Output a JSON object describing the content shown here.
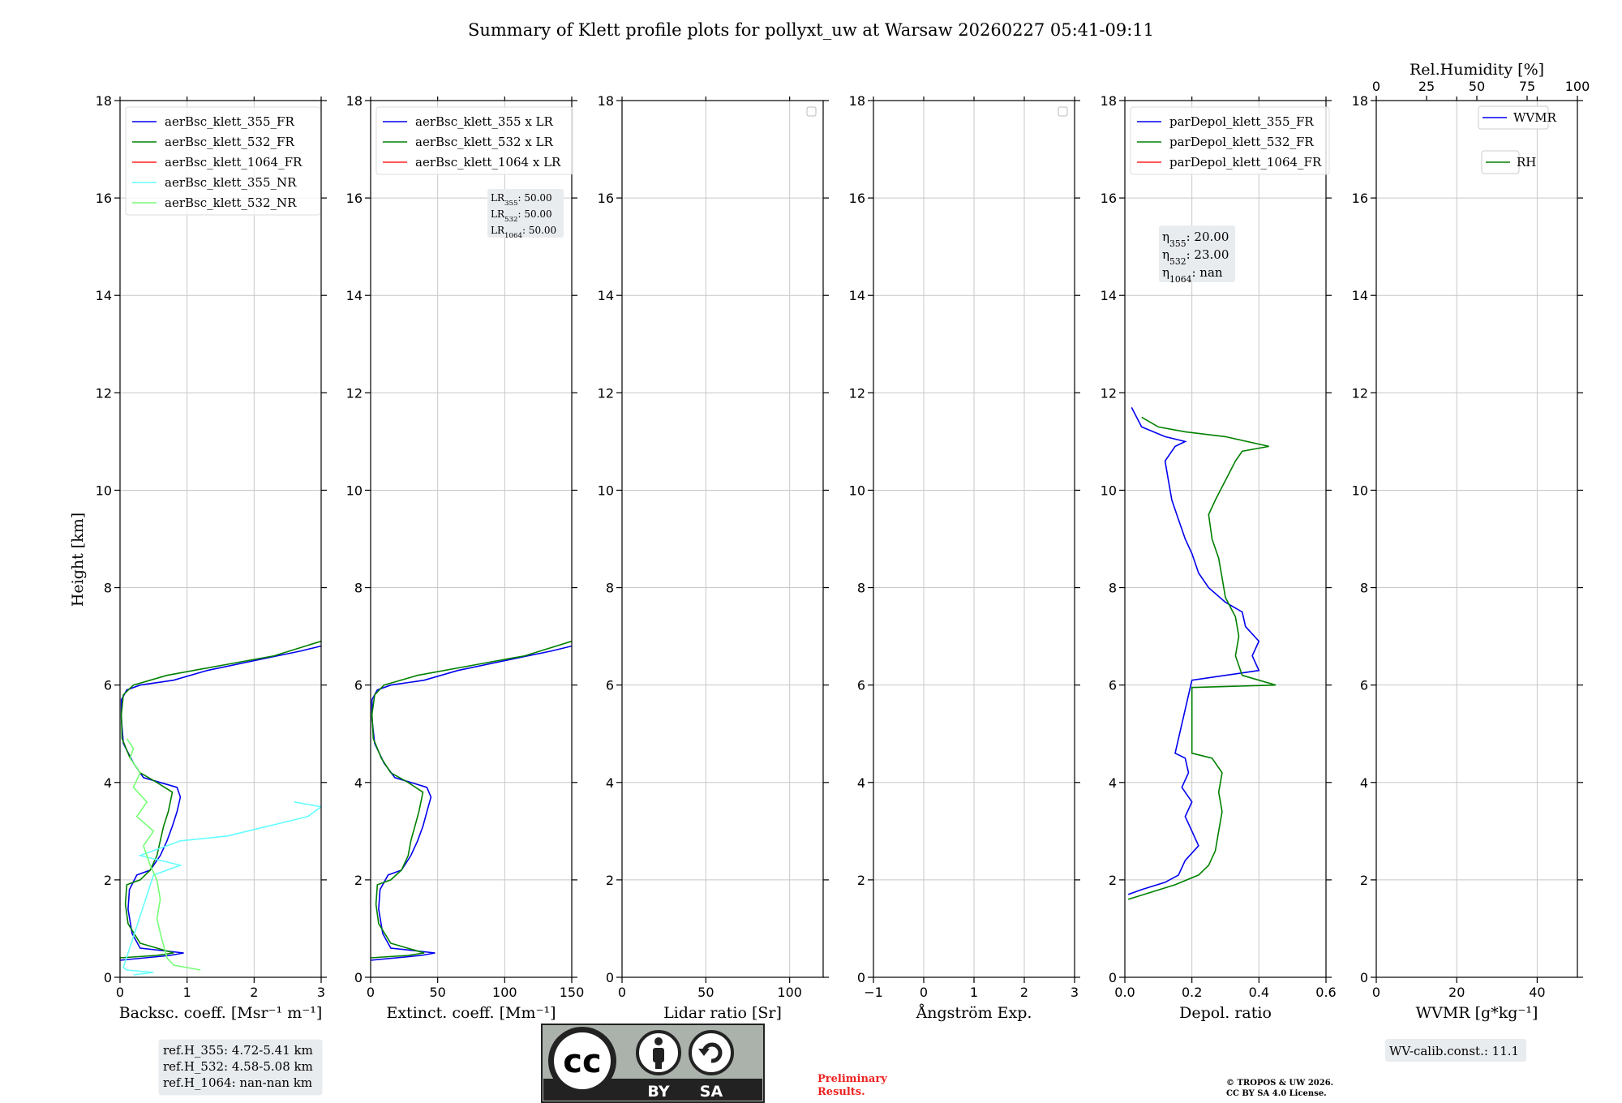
{
  "title": "Summary of Klett profile plots for pollyxt_uw at Warsaw 20260227 05:41-09:11",
  "y_axis": {
    "label": "Height [km]",
    "ylim": [
      0,
      18
    ],
    "ticks": [
      0,
      2,
      4,
      6,
      8,
      10,
      12,
      14,
      16,
      18
    ]
  },
  "colors": {
    "c355": "#0000ee",
    "c532": "#008000",
    "c1064": "#ff2020",
    "c355nr": "#66ffff",
    "c532nr": "#77ff77",
    "grid": "#c8c8c8",
    "box": "#e9ecef",
    "red_note": "#ee2222"
  },
  "chart_data": [
    {
      "type": "line",
      "id": "bsc",
      "xlabel": "Backsc. coeff. [Msr⁻¹ m⁻¹]",
      "xlim": [
        0,
        3
      ],
      "xticks": [
        0,
        1,
        2,
        3
      ],
      "ylim": [
        0,
        18
      ],
      "legend": [
        "aerBsc_klett_355_FR",
        "aerBsc_klett_532_FR",
        "aerBsc_klett_1064_FR",
        "aerBsc_klett_355_NR",
        "aerBsc_klett_532_NR"
      ],
      "series": [
        {
          "name": "aerBsc_klett_355_FR",
          "color": "c355",
          "points": [
            [
              0,
              0.35
            ],
            [
              0.75,
              0.45
            ],
            [
              0.95,
              0.5
            ],
            [
              0.3,
              0.6
            ],
            [
              0.18,
              0.9
            ],
            [
              0.12,
              1.4
            ],
            [
              0.14,
              1.8
            ],
            [
              0.25,
              2.1
            ],
            [
              0.45,
              2.2
            ],
            [
              0.6,
              2.5
            ],
            [
              0.7,
              2.8
            ],
            [
              0.78,
              3.1
            ],
            [
              0.85,
              3.4
            ],
            [
              0.9,
              3.7
            ],
            [
              0.85,
              3.9
            ],
            [
              0.6,
              4.0
            ],
            [
              0.35,
              4.1
            ],
            [
              0.2,
              4.4
            ],
            [
              0.05,
              4.8
            ],
            [
              0.02,
              5.3
            ],
            [
              0.02,
              5.7
            ],
            [
              0.1,
              5.9
            ],
            [
              0.3,
              6.0
            ],
            [
              0.8,
              6.1
            ],
            [
              1.3,
              6.3
            ],
            [
              2.0,
              6.5
            ],
            [
              2.7,
              6.7
            ],
            [
              3,
              6.8
            ]
          ]
        },
        {
          "name": "aerBsc_klett_532_FR",
          "color": "c532",
          "points": [
            [
              0,
              0.4
            ],
            [
              0.55,
              0.45
            ],
            [
              0.8,
              0.5
            ],
            [
              0.3,
              0.7
            ],
            [
              0.12,
              1.1
            ],
            [
              0.08,
              1.5
            ],
            [
              0.1,
              1.9
            ],
            [
              0.3,
              2.0
            ],
            [
              0.45,
              2.2
            ],
            [
              0.55,
              2.5
            ],
            [
              0.6,
              2.8
            ],
            [
              0.65,
              3.1
            ],
            [
              0.72,
              3.4
            ],
            [
              0.78,
              3.8
            ],
            [
              0.55,
              4.0
            ],
            [
              0.3,
              4.2
            ],
            [
              0.15,
              4.5
            ],
            [
              0.03,
              4.9
            ],
            [
              0.02,
              5.4
            ],
            [
              0.05,
              5.8
            ],
            [
              0.2,
              6.0
            ],
            [
              0.7,
              6.2
            ],
            [
              1.5,
              6.4
            ],
            [
              2.3,
              6.6
            ],
            [
              3,
              6.9
            ]
          ]
        },
        {
          "name": "aerBsc_klett_355_NR",
          "color": "c355nr",
          "points": [
            [
              0.2,
              0.05
            ],
            [
              0.5,
              0.1
            ],
            [
              0.1,
              0.15
            ],
            [
              0.05,
              0.2
            ],
            [
              0.5,
              2.1
            ],
            [
              0.9,
              2.3
            ],
            [
              0.3,
              2.5
            ],
            [
              0.9,
              2.8
            ],
            [
              1.6,
              2.9
            ],
            [
              2.2,
              3.1
            ],
            [
              2.8,
              3.3
            ],
            [
              3,
              3.5
            ],
            [
              2.6,
              3.6
            ]
          ]
        },
        {
          "name": "aerBsc_klett_532_NR",
          "color": "c532nr",
          "points": [
            [
              1.2,
              0.15
            ],
            [
              0.8,
              0.25
            ],
            [
              0.7,
              0.4
            ],
            [
              0.62,
              0.8
            ],
            [
              0.55,
              1.2
            ],
            [
              0.6,
              1.6
            ],
            [
              0.55,
              2.0
            ],
            [
              0.45,
              2.3
            ],
            [
              0.35,
              2.7
            ],
            [
              0.5,
              3.0
            ],
            [
              0.25,
              3.3
            ],
            [
              0.4,
              3.6
            ],
            [
              0.2,
              3.9
            ],
            [
              0.3,
              4.2
            ],
            [
              0.15,
              4.5
            ],
            [
              0.2,
              4.7
            ],
            [
              0.1,
              4.9
            ]
          ]
        }
      ]
    },
    {
      "type": "line",
      "id": "ext",
      "xlabel": "Extinct. coeff. [Mm⁻¹]",
      "xlim": [
        0,
        150
      ],
      "xticks": [
        0,
        50,
        100,
        150
      ],
      "ylim": [
        0,
        18
      ],
      "legend": [
        "aerBsc_klett_355 x LR",
        "aerBsc_klett_532 x LR",
        "aerBsc_klett_1064 x LR"
      ],
      "annotation": [
        "LR355: 50.00",
        "LR532: 50.00",
        "LR1064: 50.00"
      ],
      "series": [
        {
          "name": "aerBsc_klett_355 x LR",
          "color": "c355",
          "points": [
            [
              0,
              0.35
            ],
            [
              38,
              0.45
            ],
            [
              48,
              0.5
            ],
            [
              15,
              0.6
            ],
            [
              9,
              0.9
            ],
            [
              6,
              1.4
            ],
            [
              7,
              1.8
            ],
            [
              13,
              2.1
            ],
            [
              23,
              2.2
            ],
            [
              30,
              2.5
            ],
            [
              35,
              2.8
            ],
            [
              39,
              3.1
            ],
            [
              42,
              3.4
            ],
            [
              45,
              3.7
            ],
            [
              42,
              3.9
            ],
            [
              30,
              4.0
            ],
            [
              18,
              4.1
            ],
            [
              10,
              4.4
            ],
            [
              3,
              4.8
            ],
            [
              1,
              5.3
            ],
            [
              1,
              5.7
            ],
            [
              5,
              5.9
            ],
            [
              15,
              6.0
            ],
            [
              40,
              6.1
            ],
            [
              65,
              6.3
            ],
            [
              100,
              6.5
            ],
            [
              135,
              6.7
            ],
            [
              150,
              6.8
            ]
          ]
        },
        {
          "name": "aerBsc_klett_532 x LR",
          "color": "c532",
          "points": [
            [
              0,
              0.4
            ],
            [
              28,
              0.45
            ],
            [
              40,
              0.5
            ],
            [
              15,
              0.7
            ],
            [
              6,
              1.1
            ],
            [
              4,
              1.5
            ],
            [
              5,
              1.9
            ],
            [
              15,
              2.0
            ],
            [
              23,
              2.2
            ],
            [
              28,
              2.5
            ],
            [
              30,
              2.8
            ],
            [
              33,
              3.1
            ],
            [
              36,
              3.4
            ],
            [
              39,
              3.8
            ],
            [
              28,
              4.0
            ],
            [
              15,
              4.2
            ],
            [
              8,
              4.5
            ],
            [
              2,
              4.9
            ],
            [
              1,
              5.4
            ],
            [
              3,
              5.8
            ],
            [
              10,
              6.0
            ],
            [
              35,
              6.2
            ],
            [
              75,
              6.4
            ],
            [
              115,
              6.6
            ],
            [
              150,
              6.9
            ]
          ]
        }
      ]
    },
    {
      "type": "line",
      "id": "lr",
      "xlabel": "Lidar ratio [Sr]",
      "xlim": [
        0,
        120
      ],
      "xticks": [
        0,
        50,
        100
      ],
      "ylim": [
        0,
        18
      ],
      "series": []
    },
    {
      "type": "line",
      "id": "ang",
      "xlabel": "Ångström Exp.",
      "xlim": [
        -1,
        3
      ],
      "xticks": [
        -1,
        0,
        1,
        2,
        3
      ],
      "ylim": [
        0,
        18
      ],
      "series": []
    },
    {
      "type": "line",
      "id": "dep",
      "xlabel": "Depol. ratio",
      "xlim": [
        0,
        0.6
      ],
      "xticks": [
        0.0,
        0.2,
        0.4,
        0.6
      ],
      "xtick_labels": [
        "0.0",
        "0.2",
        "0.4",
        "0.6"
      ],
      "ylim": [
        0,
        18
      ],
      "legend": [
        "parDepol_klett_355_FR",
        "parDepol_klett_532_FR",
        "parDepol_klett_1064_FR"
      ],
      "annotation": [
        "η355: 20.00",
        "η532: 23.00",
        "η1064: nan"
      ],
      "series": [
        {
          "name": "parDepol_klett_355_FR",
          "color": "c355",
          "points": [
            [
              0.01,
              1.7
            ],
            [
              0.05,
              1.8
            ],
            [
              0.12,
              1.95
            ],
            [
              0.16,
              2.1
            ],
            [
              0.18,
              2.4
            ],
            [
              0.22,
              2.7
            ],
            [
              0.2,
              3.0
            ],
            [
              0.18,
              3.3
            ],
            [
              0.2,
              3.6
            ],
            [
              0.17,
              3.9
            ],
            [
              0.19,
              4.2
            ],
            [
              0.18,
              4.5
            ],
            [
              0.15,
              4.6
            ],
            [
              0.2,
              6.1
            ],
            [
              0.3,
              6.2
            ],
            [
              0.4,
              6.3
            ],
            [
              0.38,
              6.6
            ],
            [
              0.4,
              6.9
            ],
            [
              0.36,
              7.2
            ],
            [
              0.35,
              7.5
            ],
            [
              0.3,
              7.7
            ],
            [
              0.25,
              8.0
            ],
            [
              0.22,
              8.3
            ],
            [
              0.2,
              8.7
            ],
            [
              0.18,
              9.0
            ],
            [
              0.16,
              9.4
            ],
            [
              0.14,
              9.8
            ],
            [
              0.13,
              10.2
            ],
            [
              0.12,
              10.6
            ],
            [
              0.15,
              10.9
            ],
            [
              0.18,
              11.0
            ],
            [
              0.12,
              11.1
            ],
            [
              0.05,
              11.3
            ],
            [
              0.02,
              11.7
            ]
          ]
        },
        {
          "name": "parDepol_klett_532_FR",
          "color": "c532",
          "points": [
            [
              0.01,
              1.6
            ],
            [
              0.08,
              1.75
            ],
            [
              0.15,
              1.9
            ],
            [
              0.22,
              2.1
            ],
            [
              0.25,
              2.3
            ],
            [
              0.27,
              2.6
            ],
            [
              0.28,
              3.0
            ],
            [
              0.29,
              3.4
            ],
            [
              0.28,
              3.8
            ],
            [
              0.29,
              4.2
            ],
            [
              0.26,
              4.5
            ],
            [
              0.2,
              4.6
            ],
            [
              0.2,
              5.95
            ],
            [
              0.45,
              6.0
            ],
            [
              0.35,
              6.2
            ],
            [
              0.33,
              6.6
            ],
            [
              0.34,
              7.0
            ],
            [
              0.33,
              7.4
            ],
            [
              0.3,
              7.8
            ],
            [
              0.29,
              8.2
            ],
            [
              0.28,
              8.6
            ],
            [
              0.26,
              9.0
            ],
            [
              0.25,
              9.5
            ],
            [
              0.27,
              9.8
            ],
            [
              0.3,
              10.2
            ],
            [
              0.33,
              10.6
            ],
            [
              0.35,
              10.8
            ],
            [
              0.43,
              10.9
            ],
            [
              0.3,
              11.1
            ],
            [
              0.18,
              11.2
            ],
            [
              0.1,
              11.3
            ],
            [
              0.05,
              11.5
            ]
          ]
        }
      ]
    },
    {
      "type": "line",
      "id": "wv",
      "xlabel": "WVMR [g*kg⁻¹]",
      "xlim": [
        0,
        50
      ],
      "xticks": [
        0,
        20,
        40
      ],
      "ylim": [
        0,
        18
      ],
      "top_axis": {
        "label": "Rel.Humidity [%]",
        "xlim": [
          0,
          100
        ],
        "xticks": [
          0,
          25,
          50,
          75,
          100
        ]
      },
      "legend": [
        "WVMR",
        "RH"
      ],
      "series": []
    }
  ],
  "footer": {
    "ref_heights": [
      "ref.H_355: 4.72-5.41 km",
      "ref.H_532: 4.58-5.08 km",
      "ref.H_1064: nan-nan km"
    ],
    "cc_badge": {
      "by": "BY",
      "sa": "SA",
      "cc": "cc"
    },
    "preliminary": [
      "Preliminary",
      "Results."
    ],
    "copyright": [
      "© TROPOS & UW 2026.",
      "CC BY SA 4.0 License."
    ],
    "wv_calib": "WV-calib.const.: 11.1"
  }
}
